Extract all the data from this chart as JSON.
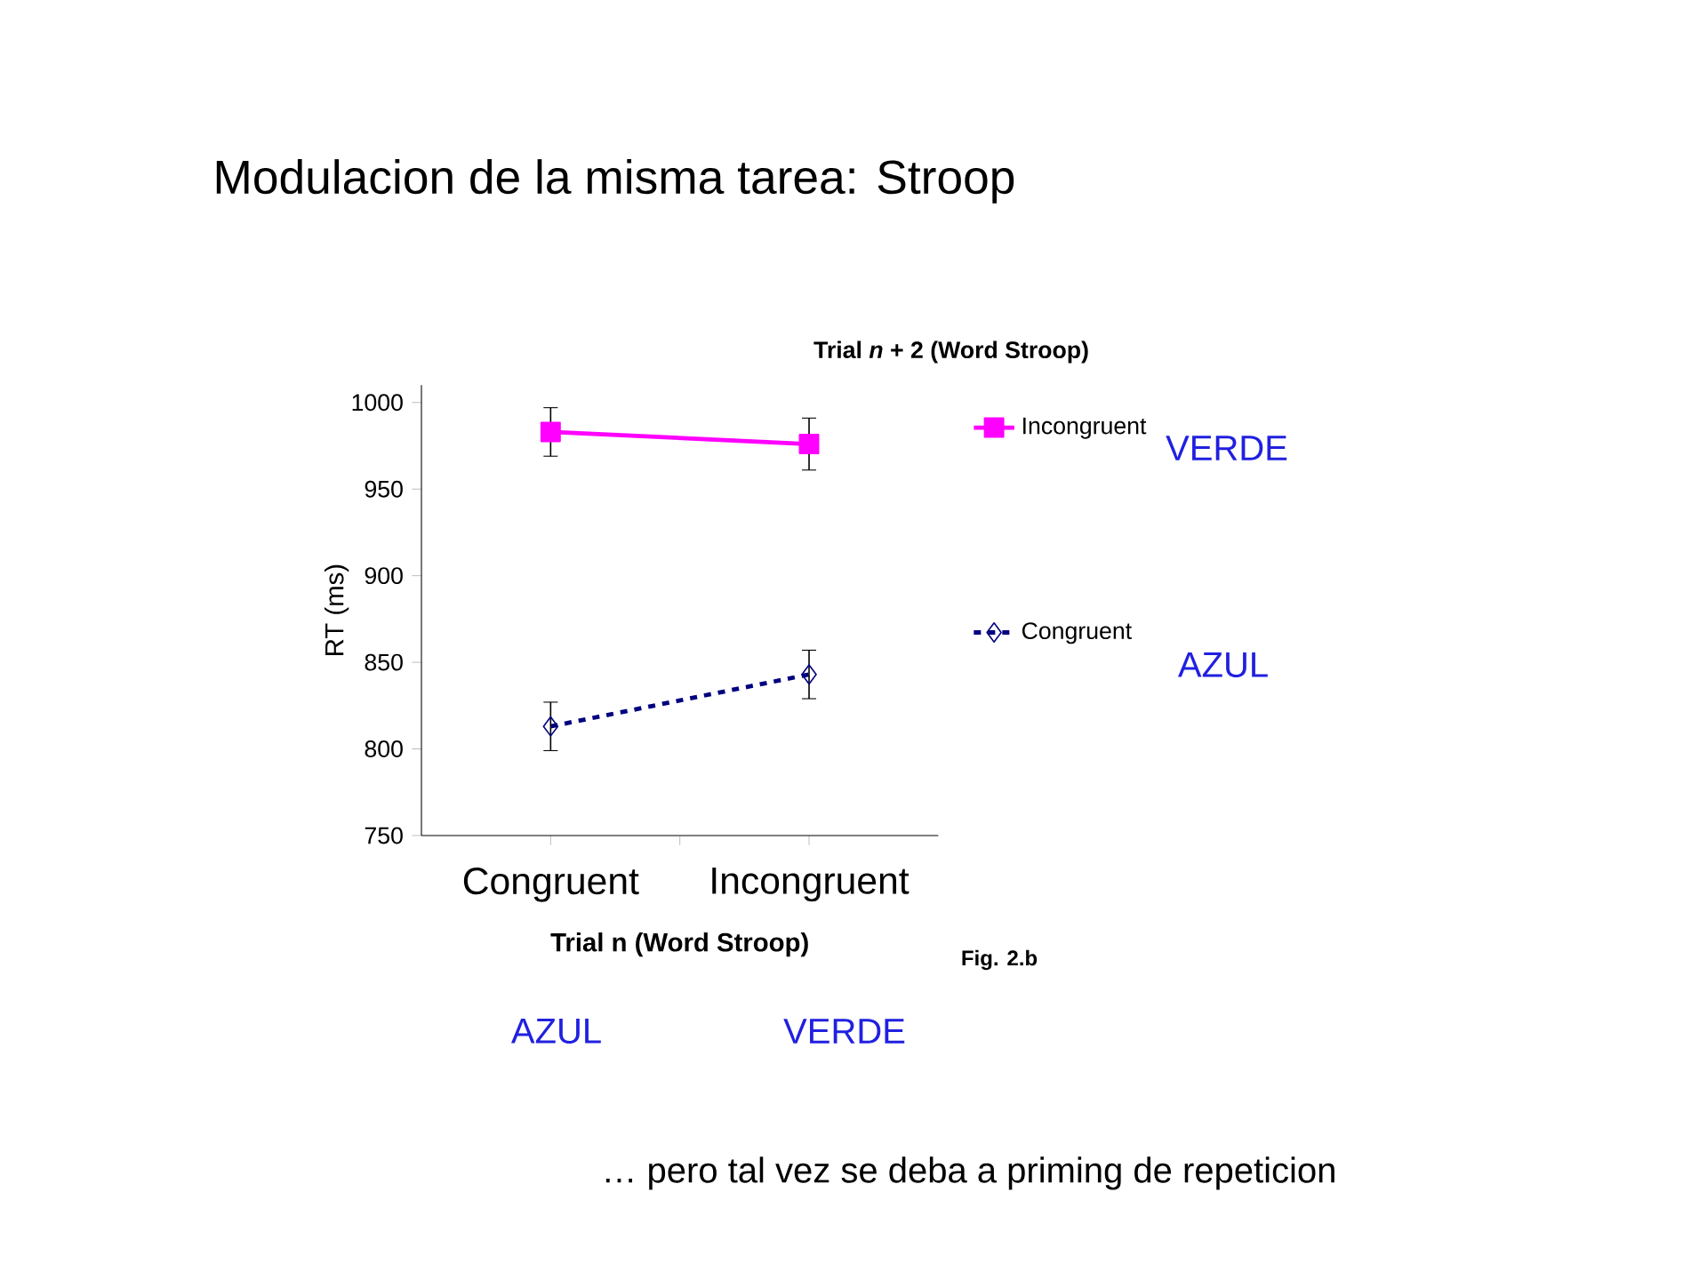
{
  "chart_data": {
    "type": "line",
    "title": "Modulacion de la misma tarea:  Stroop",
    "subtitle": "Trial *n* + 2 (Word Stroop)",
    "xlabel": "Trial n (Word Stroop)",
    "ylabel": "RT (ms)",
    "categories": [
      "Congruent",
      "Incongruent"
    ],
    "series": [
      {
        "name": "Incongruent",
        "color": "#ff00ff",
        "values": [
          983,
          976
        ],
        "errors": [
          14,
          15
        ],
        "marker": "square",
        "line_style": "solid"
      },
      {
        "name": "Congruent",
        "color": "#000080",
        "values": [
          813,
          843
        ],
        "errors": [
          14,
          14
        ],
        "marker": "diamond",
        "line_style": "dashed"
      }
    ],
    "ylim": [
      750,
      1010
    ],
    "yticks": [
      750,
      800,
      850,
      900,
      950,
      1000
    ],
    "legend": "right",
    "grid": false,
    "annotations": [
      "VERDE",
      "AZUL",
      "AZUL",
      "VERDE",
      "Fig. 2.b",
      "… pero tal vez se deba a priming de repeticion"
    ]
  }
}
